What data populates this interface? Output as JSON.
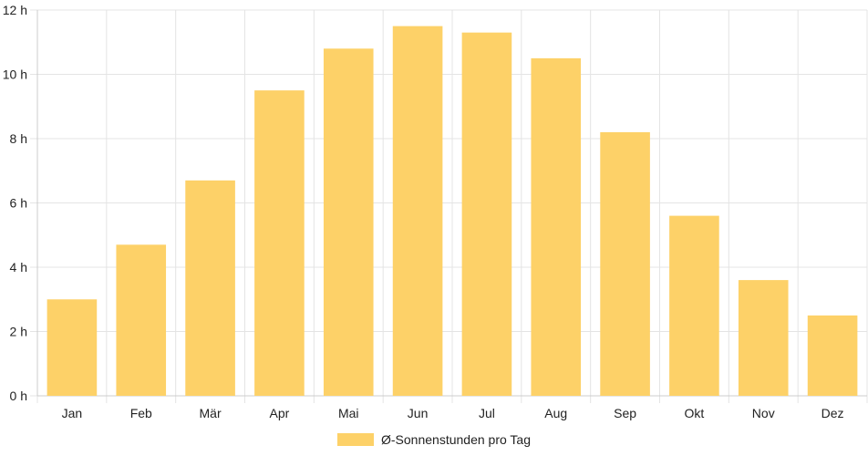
{
  "chart_data": {
    "type": "bar",
    "categories": [
      "Jan",
      "Feb",
      "Mär",
      "Apr",
      "Mai",
      "Jun",
      "Jul",
      "Aug",
      "Sep",
      "Okt",
      "Nov",
      "Dez"
    ],
    "series": [
      {
        "name": "Ø-Sonnenstunden pro Tag",
        "values": [
          3.0,
          4.7,
          6.7,
          9.5,
          10.8,
          11.5,
          11.3,
          10.5,
          8.2,
          5.6,
          3.6,
          2.5
        ],
        "color": "#fdd168"
      }
    ],
    "y_ticks": [
      "0 h",
      "2 h",
      "4 h",
      "6 h",
      "8 h",
      "10 h",
      "12 h"
    ],
    "ylim": [
      0,
      12
    ],
    "grid": true,
    "legend_position": "bottom"
  },
  "colors": {
    "bar": "#fdd168",
    "grid": "#e4e4e4",
    "axis": "#cccccc"
  }
}
